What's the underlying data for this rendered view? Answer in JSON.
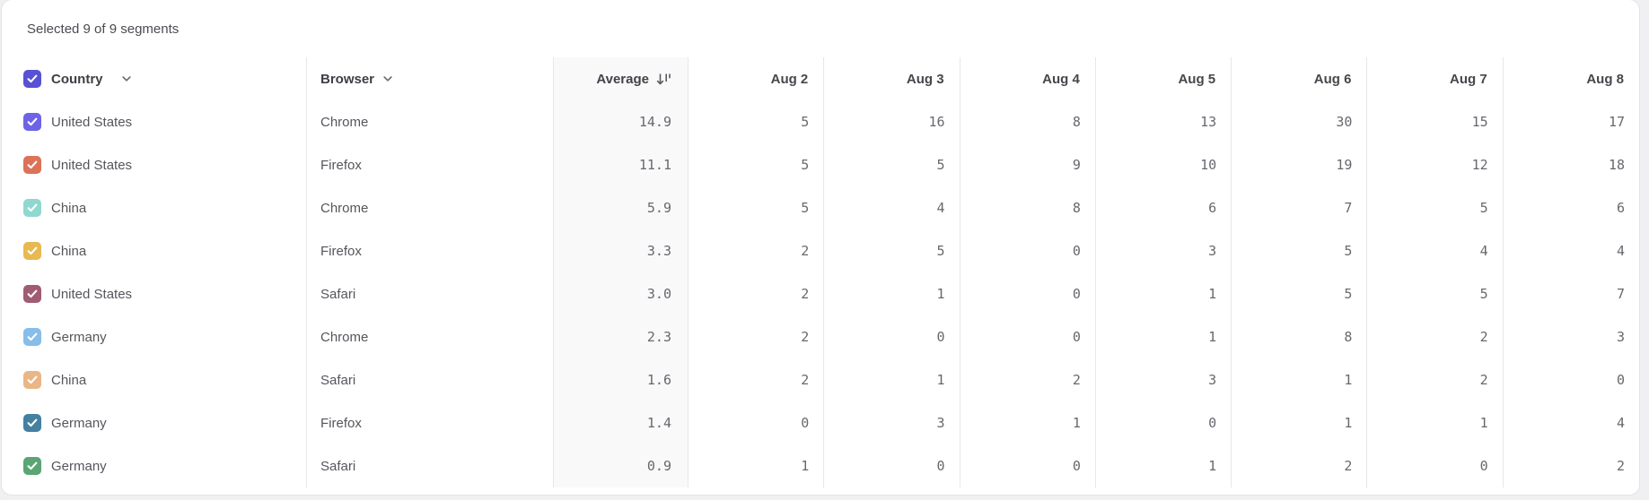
{
  "summary": {
    "text": "Selected 9 of 9 segments"
  },
  "colors": {
    "card_background": "#ffffff",
    "page_background": "#f0f0f2",
    "divider": "#e7e7ea",
    "average_column_tint": "#f9f9fa"
  },
  "icons": {
    "checkbox_check": "check",
    "country_header_icon": "chevron-down",
    "browser_header_icon": "chevron-down",
    "average_header_icon": "sort-descending"
  },
  "table": {
    "country_header": "Country",
    "browser_header": "Browser",
    "average_header": "Average",
    "date_headers": [
      "Aug 2",
      "Aug 3",
      "Aug 4",
      "Aug 5",
      "Aug 6",
      "Aug 7",
      "Aug 8"
    ],
    "select_all": {
      "checked": true,
      "color": "#5751d5"
    },
    "rows": [
      {
        "checked": true,
        "color": "#6e63e6",
        "country": "United States",
        "browser": "Chrome",
        "average": "14.9",
        "values": [
          "5",
          "16",
          "8",
          "13",
          "30",
          "15",
          "17"
        ]
      },
      {
        "checked": true,
        "color": "#dc7257",
        "country": "United States",
        "browser": "Firefox",
        "average": "11.1",
        "values": [
          "5",
          "5",
          "9",
          "10",
          "19",
          "12",
          "18"
        ]
      },
      {
        "checked": true,
        "color": "#90d8cf",
        "country": "China",
        "browser": "Chrome",
        "average": "5.9",
        "values": [
          "5",
          "4",
          "8",
          "6",
          "7",
          "5",
          "6"
        ]
      },
      {
        "checked": true,
        "color": "#e7b950",
        "country": "China",
        "browser": "Firefox",
        "average": "3.3",
        "values": [
          "2",
          "5",
          "0",
          "3",
          "5",
          "4",
          "4"
        ]
      },
      {
        "checked": true,
        "color": "#a05c72",
        "country": "United States",
        "browser": "Safari",
        "average": "3.0",
        "values": [
          "2",
          "1",
          "0",
          "1",
          "5",
          "5",
          "7"
        ]
      },
      {
        "checked": true,
        "color": "#87bde9",
        "country": "Germany",
        "browser": "Chrome",
        "average": "2.3",
        "values": [
          "2",
          "0",
          "0",
          "1",
          "8",
          "2",
          "3"
        ]
      },
      {
        "checked": true,
        "color": "#eab687",
        "country": "China",
        "browser": "Safari",
        "average": "1.6",
        "values": [
          "2",
          "1",
          "2",
          "3",
          "1",
          "2",
          "0"
        ]
      },
      {
        "checked": true,
        "color": "#44809f",
        "country": "Germany",
        "browser": "Firefox",
        "average": "1.4",
        "values": [
          "0",
          "3",
          "1",
          "0",
          "1",
          "1",
          "4"
        ]
      },
      {
        "checked": true,
        "color": "#5ba473",
        "country": "Germany",
        "browser": "Safari",
        "average": "0.9",
        "values": [
          "1",
          "0",
          "0",
          "1",
          "2",
          "0",
          "2"
        ]
      }
    ]
  }
}
